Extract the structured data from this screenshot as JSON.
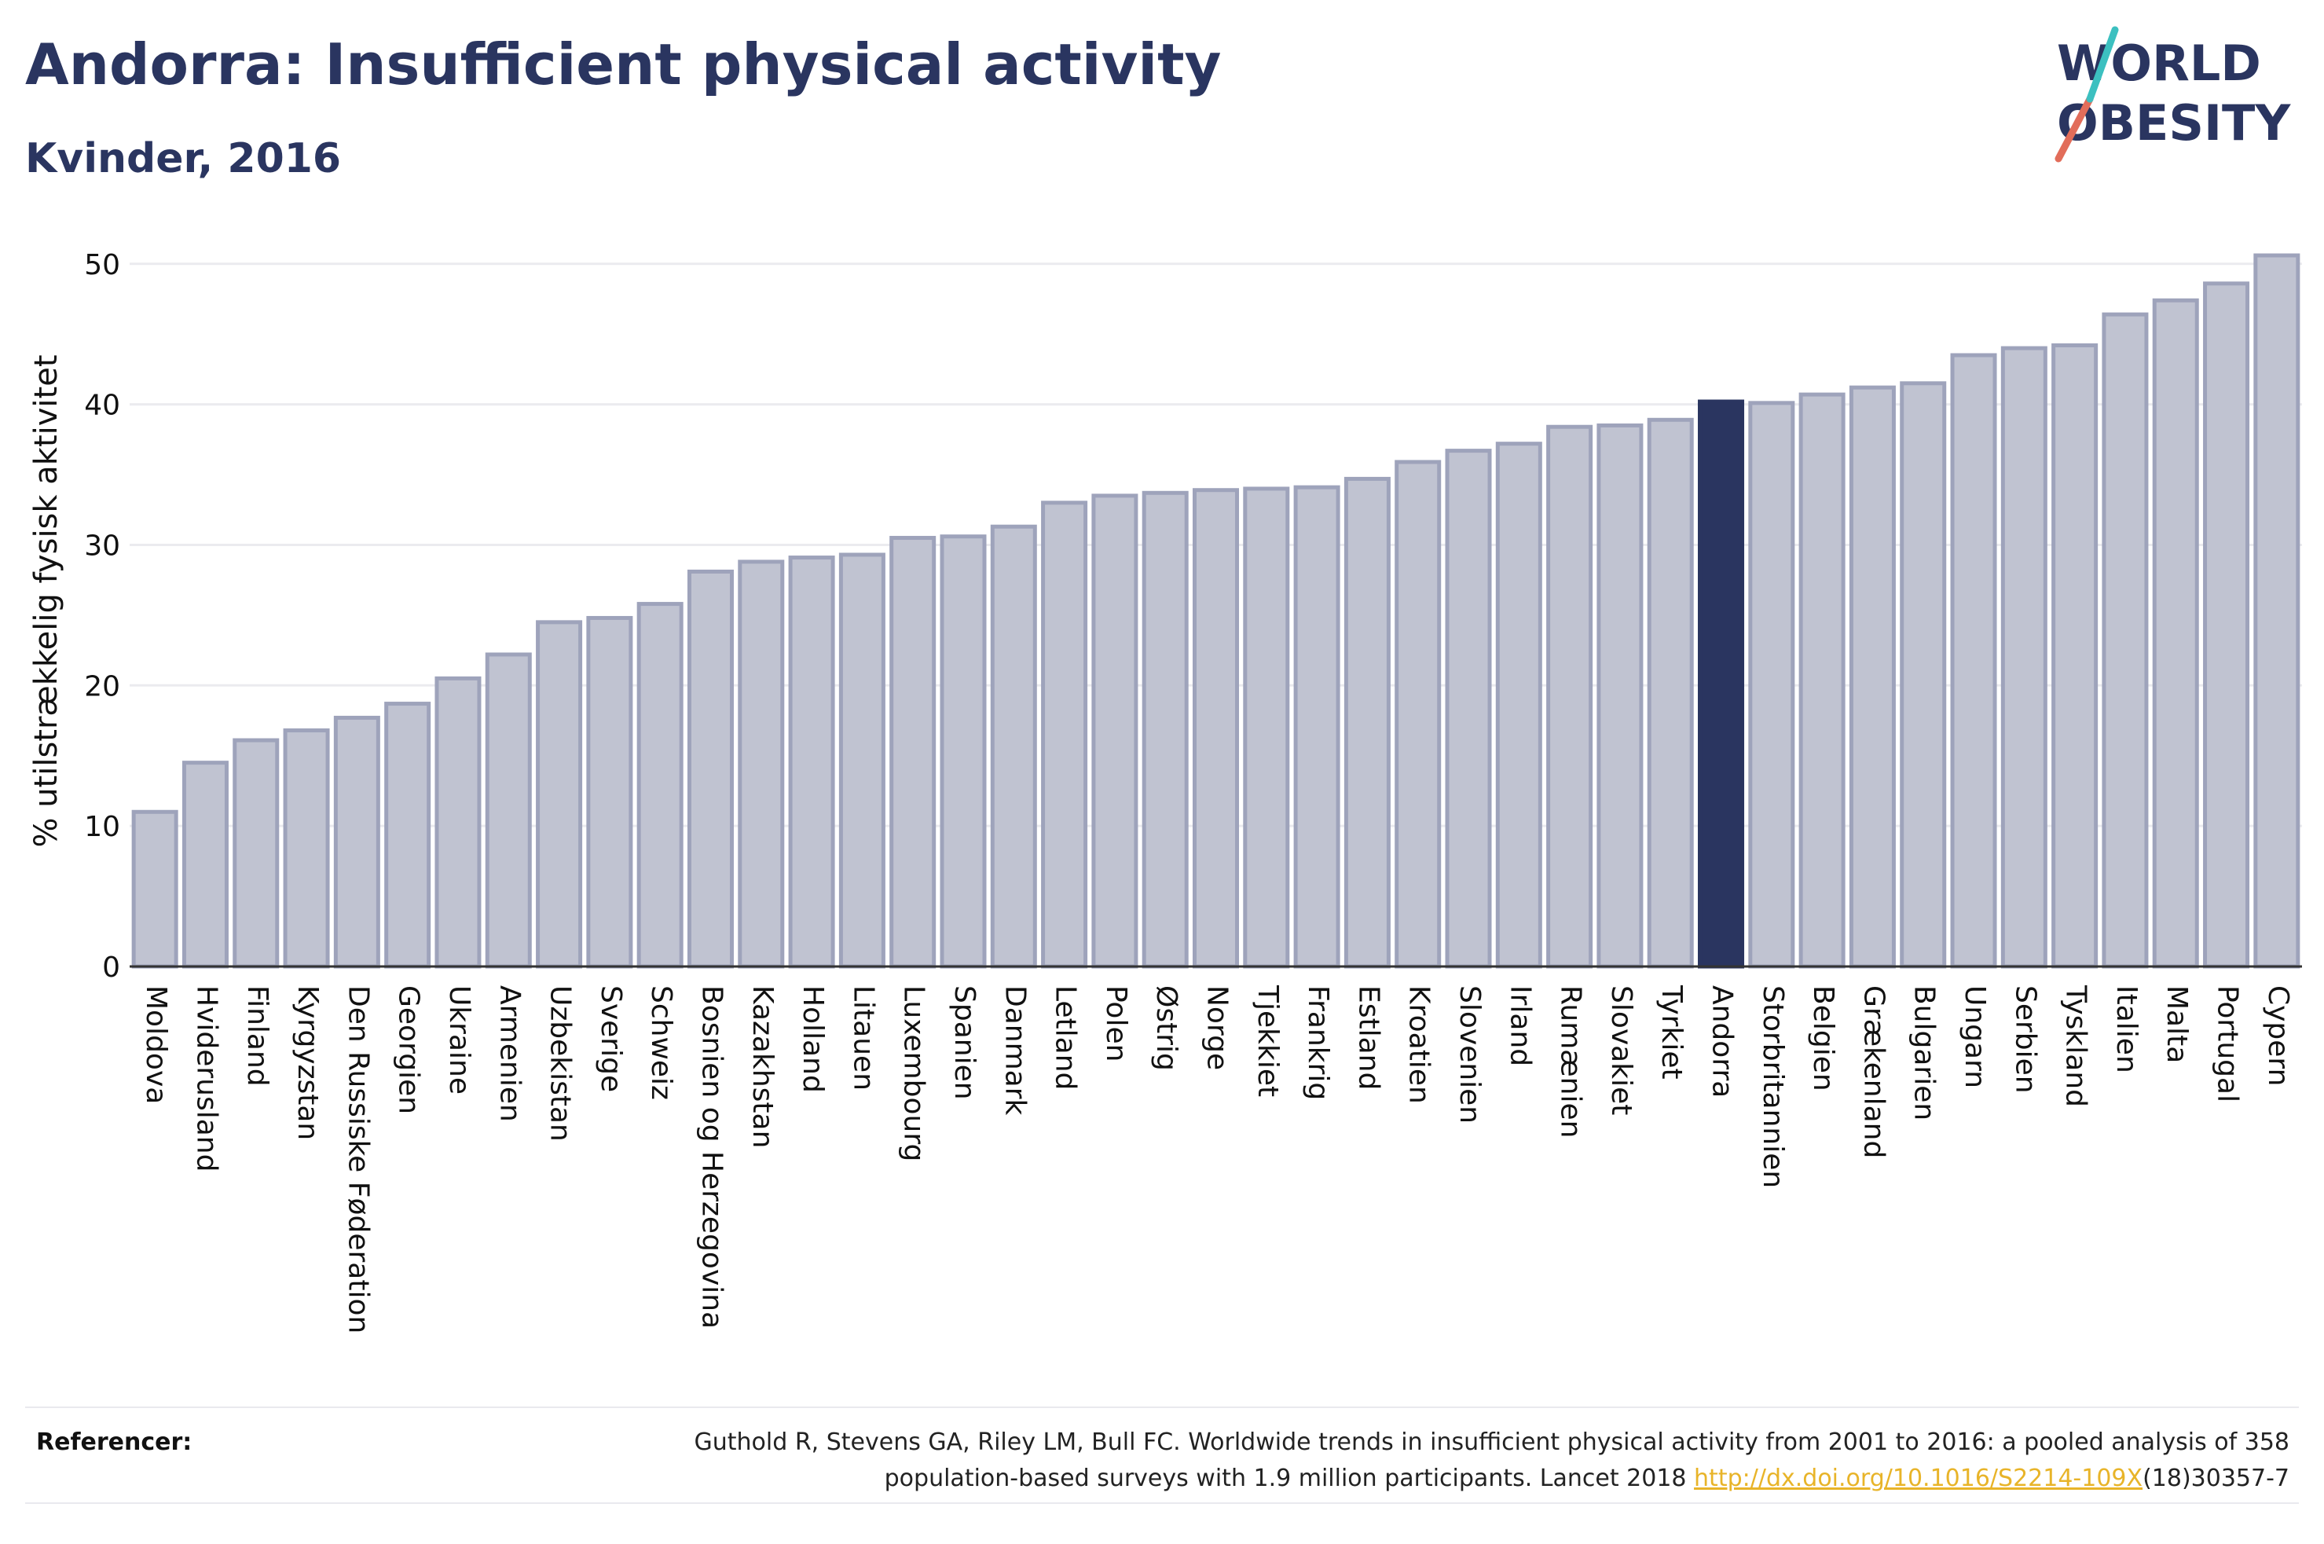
{
  "title": "Andorra: Insufficient physical activity",
  "subtitle": "Kvinder, 2016",
  "logo": {
    "line1": "WORLD",
    "line2": "OBESITY",
    "accent_colors": [
      "#e26d5a",
      "#3cc0c0"
    ]
  },
  "colors": {
    "bar": "#c0c3d1",
    "bar_outline": "#9ea3bb",
    "highlight": "#2a3560",
    "grid": "#ebebef",
    "axis_text": "#111111"
  },
  "chart_data": {
    "type": "bar",
    "ylabel": "% utilstrækkelig fysisk aktivitet",
    "ylim": [
      0,
      52
    ],
    "yticks": [
      0,
      10,
      20,
      30,
      40,
      50
    ],
    "grid": true,
    "highlight": "Andorra",
    "categories": [
      "Moldova",
      "Hviderusland",
      "Finland",
      "Kyrgyzstan",
      "Den Russiske Føderation",
      "Georgien",
      "Ukraine",
      "Armenien",
      "Uzbekistan",
      "Sverige",
      "Schweiz",
      "Bosnien og Herzegovina",
      "Kazakhstan",
      "Holland",
      "Litauen",
      "Luxembourg",
      "Spanien",
      "Danmark",
      "Letland",
      "Polen",
      "Østrig",
      "Norge",
      "Tjekkiet",
      "Frankrig",
      "Estland",
      "Kroatien",
      "Slovenien",
      "Irland",
      "Rumænien",
      "Slovakiet",
      "Tyrkiet",
      "Andorra",
      "Storbritannien",
      "Belgien",
      "Grækenland",
      "Bulgarien",
      "Ungarn",
      "Serbien",
      "Tyskland",
      "Italien",
      "Malta",
      "Portugal",
      "Cypern"
    ],
    "values": [
      11.0,
      14.5,
      16.1,
      16.8,
      17.7,
      18.7,
      20.5,
      22.2,
      24.5,
      24.8,
      25.8,
      28.1,
      28.8,
      29.1,
      29.3,
      30.5,
      30.6,
      31.3,
      33.0,
      33.5,
      33.7,
      33.9,
      34.0,
      34.1,
      34.7,
      35.9,
      36.7,
      37.2,
      38.4,
      38.5,
      38.9,
      40.2,
      40.1,
      40.7,
      41.2,
      41.5,
      43.5,
      44.0,
      44.2,
      46.4,
      47.4,
      48.6,
      50.6
    ]
  },
  "references": {
    "label": "Referencer:",
    "text_before": "Guthold R, Stevens GA, Riley LM, Bull FC. Worldwide trends in insufficient physical activity from 2001 to 2016: a pooled analysis of 358 population-based surveys with 1.9 million participants. Lancet 2018 ",
    "link": "http://dx.doi.org/10.1016/S2214-109X",
    "text_after": "(18)30357-7"
  }
}
